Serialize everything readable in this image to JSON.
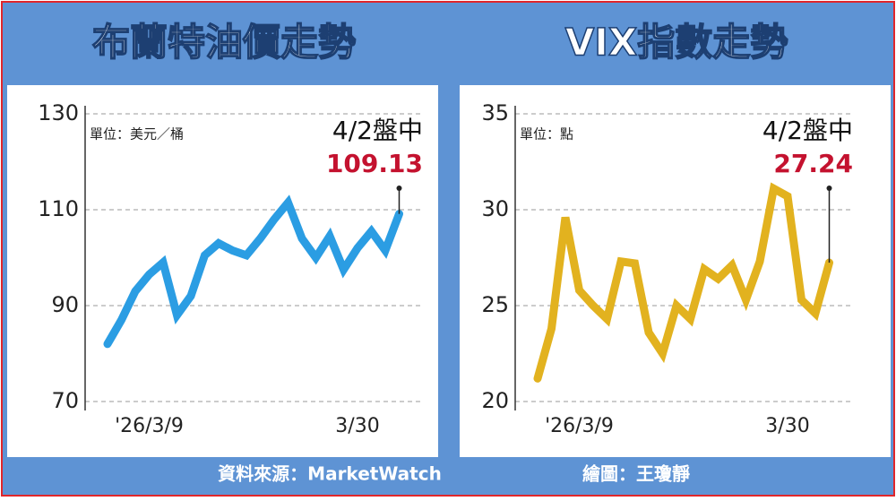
{
  "chart_data": [
    {
      "type": "line",
      "title": "布蘭特油價走勢",
      "unit_label": "單位：美元／桶",
      "annotation": "4/2盤中",
      "categories": [
        null,
        null,
        null,
        "'26/3/9",
        null,
        null,
        null,
        null,
        null,
        null,
        null,
        null,
        null,
        null,
        null,
        null,
        null,
        null,
        "3/30",
        null,
        null,
        null
      ],
      "series": [
        {
          "color": "#2b9de3",
          "values": [
            82,
            87,
            93,
            96.5,
            99,
            88,
            92,
            100.5,
            103,
            101.5,
            100.5,
            104,
            108,
            111.5,
            104,
            100,
            104.5,
            97.5,
            102,
            105.5,
            101.5,
            109.13
          ]
        }
      ],
      "ylim": [
        70,
        130
      ],
      "yticks": [
        70,
        90,
        110,
        130
      ],
      "grid": true
    },
    {
      "type": "line",
      "title": "VIX指數走勢",
      "unit_label": "單位：點",
      "annotation": "4/2盤中",
      "categories": [
        null,
        null,
        null,
        "'26/3/9",
        null,
        null,
        null,
        null,
        null,
        null,
        null,
        null,
        null,
        null,
        null,
        null,
        null,
        null,
        "3/30",
        null,
        null,
        null
      ],
      "series": [
        {
          "color": "#e2b21f",
          "values": [
            21.2,
            23.8,
            29.6,
            25.8,
            25,
            24.3,
            27.3,
            27.2,
            23.6,
            22.5,
            25,
            24.3,
            26.9,
            26.4,
            27.1,
            25.3,
            27.3,
            31.1,
            30.7,
            25.3,
            24.6,
            27.24
          ]
        }
      ],
      "ylim": [
        20,
        35
      ],
      "yticks": [
        20,
        25,
        30,
        35
      ],
      "grid": true
    }
  ],
  "footer": {
    "source": "資料來源：MarketWatch",
    "credit": "繪圖：王瓊靜"
  }
}
